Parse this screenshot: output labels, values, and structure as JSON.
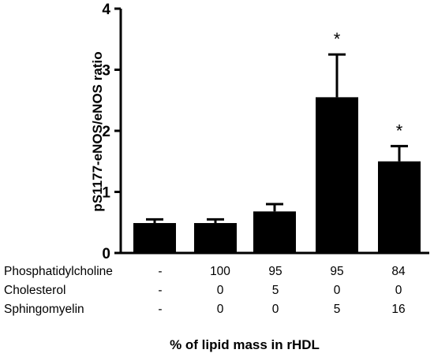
{
  "chart_data": {
    "type": "bar",
    "ylabel": "pS1177-eNOS/eNOS ratio",
    "xlabel": "% of lipid mass in rHDL",
    "ylim": [
      0,
      4
    ],
    "yticks": [
      "0",
      "1",
      "2",
      "3",
      "4"
    ],
    "values": [
      0.49,
      0.49,
      0.68,
      2.55,
      1.5
    ],
    "errors": [
      0.06,
      0.06,
      0.12,
      0.7,
      0.25
    ],
    "annotations": [
      "",
      "",
      "",
      "*",
      "*"
    ],
    "bar_color": "#000000",
    "composition": [
      {
        "name": "Phosphatidylcholine",
        "values": [
          "-",
          "100",
          "95",
          "95",
          "84"
        ]
      },
      {
        "name": "Cholesterol",
        "values": [
          "-",
          "0",
          "5",
          "0",
          "0"
        ]
      },
      {
        "name": "Sphingomyelin",
        "values": [
          "-",
          "0",
          "0",
          "5",
          "16"
        ]
      }
    ]
  }
}
